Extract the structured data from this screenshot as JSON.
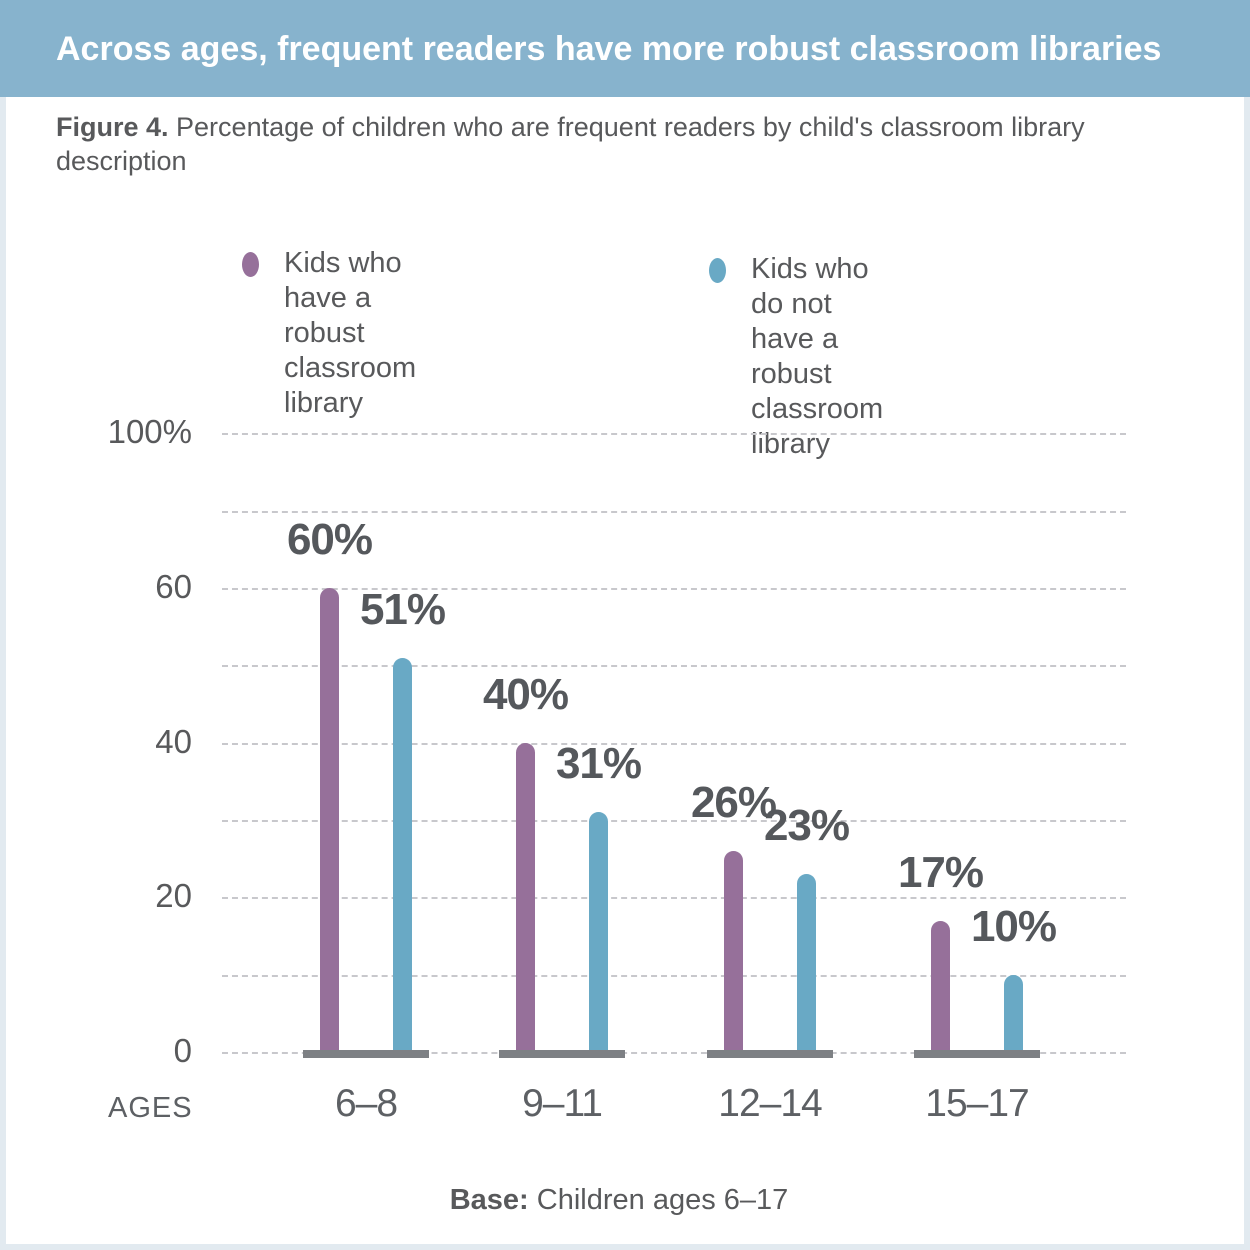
{
  "header": {
    "title": "Across ages, frequent readers have more robust classroom libraries",
    "banner_color": "#87b3cd"
  },
  "figure": {
    "label": "Figure 4.",
    "caption": " Percentage of children who are frequent readers by child's classroom library description"
  },
  "legend": {
    "items": [
      {
        "label": "Kids who\nhave a robust\nclassroom library",
        "color": "#96709a"
      },
      {
        "label": "Kids who do not\nhave a robust\nclassroom library",
        "color": "#69a9c5"
      }
    ]
  },
  "chart_data": {
    "type": "bar",
    "categories": [
      "6–8",
      "9–11",
      "12–14",
      "15–17"
    ],
    "series": [
      {
        "name": "Kids who have a robust classroom library",
        "color": "#96709a",
        "values": [
          60,
          40,
          26,
          17
        ]
      },
      {
        "name": "Kids who do not have a robust classroom library",
        "color": "#69a9c5",
        "values": [
          51,
          31,
          23,
          10
        ]
      }
    ],
    "value_suffix": "%",
    "xlabel": "AGES",
    "ylabel": "",
    "ylim": [
      0,
      100
    ],
    "yticks": [
      {
        "value": 100,
        "label": "100%"
      },
      {
        "value": 60,
        "label": "60"
      },
      {
        "value": 40,
        "label": "40"
      },
      {
        "value": 20,
        "label": "20"
      },
      {
        "value": 0,
        "label": "0"
      }
    ],
    "gridline_values": [
      0,
      10,
      20,
      30,
      40,
      50,
      60,
      80,
      100
    ],
    "grid": "dashed horizontal",
    "axis_note": "y-axis compressed above 60 (80 and 100 gridlines at half spacing)",
    "legend_position": "top",
    "colors": {
      "gridline": "#c8c8cc",
      "baseline": "#7d8084",
      "text": "#58595b"
    }
  },
  "footer": {
    "base_label": "Base:",
    "base_text": " Children ages 6–17"
  }
}
